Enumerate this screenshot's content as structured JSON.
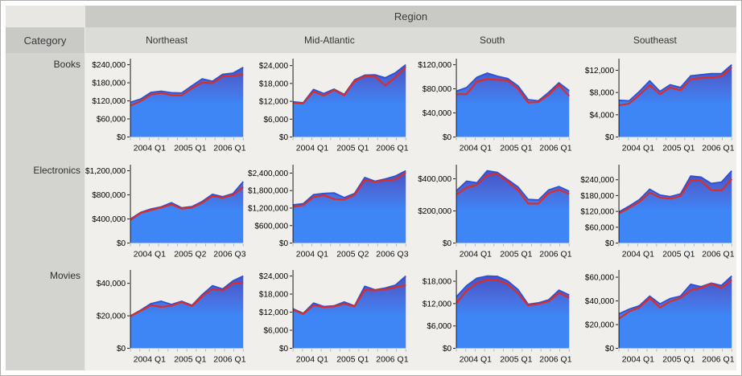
{
  "header": {
    "region_label": "Region",
    "category_label": "Category",
    "columns": [
      "Northeast",
      "Mid-Atlantic",
      "South",
      "Southeast"
    ],
    "rows": [
      "Books",
      "Electronics",
      "Movies"
    ]
  },
  "colors": {
    "region_header_bg": "#c9cac6",
    "column_header_bg": "#dbdbd8",
    "row_label_bg": "#d3d3d0",
    "chart_bg": "#f0efeb",
    "area_gradient_top": "#4350c2",
    "area_gradient_mid": "#4a6cdc",
    "area_gradient_main": "#3e86f6",
    "area_border_line": "#2b51d8",
    "trend_line": "#e02b22",
    "axis": "#1c1c1c",
    "x_tick": "#a9b6c9"
  },
  "chart_data": [
    {
      "type": "area",
      "category": "Books",
      "region": "Northeast",
      "x_ticks": [
        "2004 Q1",
        "2005 Q1",
        "2006 Q1"
      ],
      "y_ticks": [
        "$0",
        "$60,000",
        "$120,000",
        "$180,000",
        "$240,000"
      ],
      "y_tick_values": [
        0,
        60000,
        120000,
        180000,
        240000
      ],
      "series": [
        {
          "name": "sales-area",
          "values": [
            115000,
            126000,
            148000,
            152000,
            147000,
            146000,
            170000,
            193000,
            185000,
            208000,
            212000,
            231000
          ]
        },
        {
          "name": "sales-line",
          "values": [
            104000,
            119000,
            141000,
            146000,
            139000,
            138000,
            162000,
            181000,
            179000,
            201000,
            204000,
            207000
          ]
        }
      ]
    },
    {
      "type": "area",
      "category": "Books",
      "region": "Mid-Atlantic",
      "x_ticks": [
        "2004 Q1",
        "2005 Q1",
        "2006 Q1"
      ],
      "y_ticks": [
        "$0",
        "$6,000",
        "$12,000",
        "$18,000",
        "$24,000"
      ],
      "y_tick_values": [
        0,
        6000,
        12000,
        18000,
        24000
      ],
      "series": [
        {
          "name": "sales-area",
          "values": [
            11800,
            11500,
            16000,
            14600,
            16100,
            14300,
            19200,
            20800,
            20900,
            19900,
            21600,
            24300
          ]
        },
        {
          "name": "sales-line",
          "values": [
            11500,
            11300,
            15300,
            13900,
            15800,
            14000,
            18800,
            20400,
            20300,
            17300,
            20100,
            23600
          ]
        }
      ]
    },
    {
      "type": "area",
      "category": "Books",
      "region": "South",
      "x_ticks": [
        "2004 Q1",
        "2005 Q1",
        "2006 Q1"
      ],
      "y_ticks": [
        "$0",
        "$40,000",
        "$80,000",
        "$120,000"
      ],
      "y_tick_values": [
        0,
        40000,
        80000,
        120000
      ],
      "series": [
        {
          "name": "sales-area",
          "values": [
            76000,
            82000,
            99000,
            106000,
            101000,
            97000,
            85000,
            62000,
            60000,
            74000,
            90000,
            77000
          ]
        },
        {
          "name": "sales-line",
          "values": [
            71000,
            71000,
            92000,
            96000,
            95000,
            94000,
            80000,
            57000,
            58000,
            70000,
            87000,
            68000
          ]
        }
      ]
    },
    {
      "type": "area",
      "category": "Books",
      "region": "Southeast",
      "x_ticks": [
        "2004 Q1",
        "2005 Q1",
        "2006 Q1"
      ],
      "y_ticks": [
        "$0",
        "$4,000",
        "$8,000",
        "$12,000"
      ],
      "y_tick_values": [
        0,
        4000,
        8000,
        12000
      ],
      "series": [
        {
          "name": "sales-area",
          "values": [
            6600,
            6500,
            8200,
            10100,
            8200,
            9400,
            8900,
            11000,
            11200,
            11400,
            11400,
            13000
          ]
        },
        {
          "name": "sales-line",
          "values": [
            5700,
            6000,
            7600,
            9300,
            7700,
            8900,
            8400,
            10400,
            10600,
            10700,
            10900,
            12500
          ]
        }
      ]
    },
    {
      "type": "area",
      "category": "Electronics",
      "region": "Northeast",
      "x_ticks": [
        "2004 Q1",
        "2005 Q2",
        "2006 Q3"
      ],
      "y_ticks": [
        "$0",
        "$400,000",
        "$800,000",
        "$1,200,000"
      ],
      "y_tick_values": [
        0,
        400000,
        800000,
        1200000
      ],
      "series": [
        {
          "name": "sales-area",
          "values": [
            400000,
            510000,
            565000,
            600000,
            670000,
            585000,
            605000,
            690000,
            810000,
            770000,
            820000,
            1020000
          ]
        },
        {
          "name": "sales-line",
          "values": [
            385000,
            498000,
            548000,
            588000,
            642000,
            570000,
            588000,
            668000,
            782000,
            752000,
            800000,
            930000
          ]
        }
      ]
    },
    {
      "type": "area",
      "category": "Electronics",
      "region": "Mid-Atlantic",
      "x_ticks": [
        "2004 Q1",
        "2005 Q2",
        "2006 Q3"
      ],
      "y_ticks": [
        "$0",
        "$600,000",
        "$1,200,000",
        "$1,800,000",
        "$2,400,000"
      ],
      "y_tick_values": [
        0,
        600000,
        1200000,
        1800000,
        2400000
      ],
      "series": [
        {
          "name": "sales-area",
          "values": [
            1310000,
            1350000,
            1660000,
            1700000,
            1720000,
            1560000,
            1700000,
            2250000,
            2120000,
            2200000,
            2300000,
            2480000
          ]
        },
        {
          "name": "sales-line",
          "values": [
            1240000,
            1300000,
            1580000,
            1640000,
            1510000,
            1490000,
            1650000,
            2160000,
            2100000,
            2150000,
            2180000,
            2420000
          ]
        }
      ]
    },
    {
      "type": "area",
      "category": "Electronics",
      "region": "South",
      "x_ticks": [
        "2004 Q1",
        "2005 Q1",
        "2006 Q1"
      ],
      "y_ticks": [
        "$0",
        "$200,000",
        "$400,000"
      ],
      "y_tick_values": [
        0,
        200000,
        400000
      ],
      "series": [
        {
          "name": "sales-area",
          "values": [
            325000,
            385000,
            375000,
            450000,
            440000,
            395000,
            350000,
            272000,
            268000,
            330000,
            352000,
            322000
          ]
        },
        {
          "name": "sales-line",
          "values": [
            302000,
            345000,
            362000,
            422000,
            430000,
            382000,
            330000,
            246000,
            246000,
            312000,
            332000,
            306000
          ]
        }
      ]
    },
    {
      "type": "area",
      "category": "Electronics",
      "region": "Southeast",
      "x_ticks": [
        "2004 Q1",
        "2005 Q1",
        "2006 Q1"
      ],
      "y_ticks": [
        "$0",
        "$60,000",
        "$120,000",
        "$180,000",
        "$240,000"
      ],
      "y_tick_values": [
        0,
        60000,
        120000,
        180000,
        240000
      ],
      "series": [
        {
          "name": "sales-area",
          "values": [
            118000,
            140000,
            165000,
            204000,
            182000,
            176000,
            186000,
            254000,
            250000,
            226000,
            231000,
            274000
          ]
        },
        {
          "name": "sales-line",
          "values": [
            112000,
            133000,
            156000,
            191000,
            173000,
            168000,
            178000,
            238000,
            236000,
            201000,
            199000,
            243000
          ]
        }
      ]
    },
    {
      "type": "area",
      "category": "Movies",
      "region": "Northeast",
      "x_ticks": [
        "2004 Q1",
        "2005 Q1",
        "2006 Q1"
      ],
      "y_ticks": [
        "$0",
        "$20,000",
        "$40,000"
      ],
      "y_tick_values": [
        0,
        20000,
        40000
      ],
      "series": [
        {
          "name": "sales-area",
          "values": [
            20000,
            23500,
            27500,
            29000,
            27000,
            29000,
            26500,
            33000,
            38500,
            36500,
            41500,
            44500
          ]
        },
        {
          "name": "sales-line",
          "values": [
            19800,
            23000,
            26500,
            25500,
            26200,
            28500,
            26000,
            32000,
            36500,
            35500,
            40000,
            40500
          ]
        }
      ]
    },
    {
      "type": "area",
      "category": "Movies",
      "region": "Mid-Atlantic",
      "x_ticks": [
        "2004 Q1",
        "2005 Q1",
        "2006 Q1"
      ],
      "y_ticks": [
        "$0",
        "$6,000",
        "$12,000",
        "$18,000",
        "$24,000"
      ],
      "y_tick_values": [
        0,
        6000,
        12000,
        18000,
        24000
      ],
      "series": [
        {
          "name": "sales-area",
          "values": [
            13100,
            11600,
            15000,
            13900,
            14100,
            15400,
            14100,
            20600,
            19400,
            20000,
            21000,
            24000
          ]
        },
        {
          "name": "sales-line",
          "values": [
            12800,
            11400,
            14300,
            13700,
            13900,
            14800,
            13900,
            19400,
            19200,
            19600,
            20300,
            21000
          ]
        }
      ]
    },
    {
      "type": "area",
      "category": "Movies",
      "region": "South",
      "x_ticks": [
        "2004 Q1",
        "2005 Q1",
        "2006 Q1"
      ],
      "y_ticks": [
        "$0",
        "$6,000",
        "$12,000",
        "$18,000"
      ],
      "y_tick_values": [
        0,
        6000,
        12000,
        18000
      ],
      "series": [
        {
          "name": "sales-area",
          "values": [
            13800,
            16800,
            18800,
            19400,
            19300,
            18100,
            15800,
            11800,
            12200,
            13000,
            15600,
            14300
          ]
        },
        {
          "name": "sales-line",
          "values": [
            12100,
            15500,
            17500,
            18400,
            18300,
            17200,
            14800,
            11500,
            11900,
            12600,
            14900,
            13600
          ]
        }
      ]
    },
    {
      "type": "area",
      "category": "Movies",
      "region": "Southeast",
      "x_ticks": [
        "2004 Q1",
        "2005 Q1",
        "2006 Q1"
      ],
      "y_ticks": [
        "$0",
        "$20,000",
        "$40,000",
        "$60,000"
      ],
      "y_tick_values": [
        0,
        20000,
        40000,
        60000
      ],
      "series": [
        {
          "name": "sales-area",
          "values": [
            29000,
            33000,
            36000,
            44000,
            37500,
            42000,
            44000,
            54000,
            52000,
            55000,
            53000,
            61000
          ]
        },
        {
          "name": "sales-line",
          "values": [
            25000,
            31000,
            34500,
            42500,
            34500,
            39500,
            42500,
            49000,
            51000,
            54500,
            51000,
            57500
          ]
        }
      ]
    }
  ]
}
